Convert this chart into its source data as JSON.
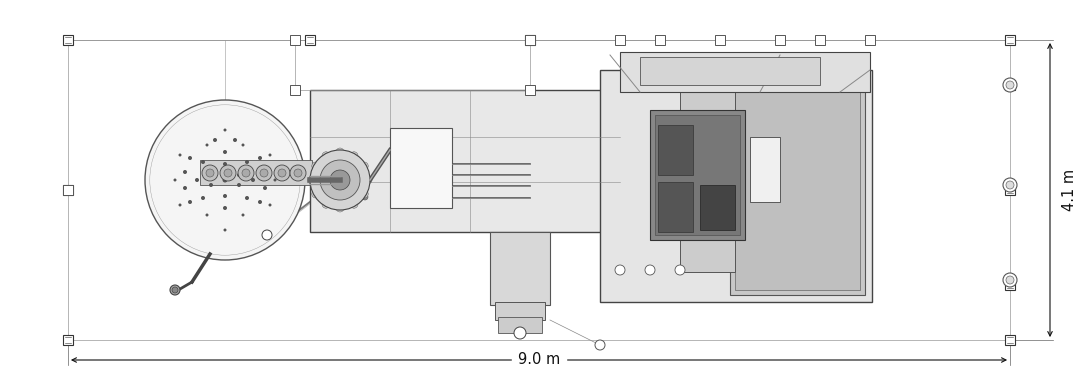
{
  "background_color": "#ffffff",
  "lc": "#333333",
  "lc_dark": "#111111",
  "lc_light": "#888888",
  "fill_light": "#f2f2f2",
  "fill_mid": "#d8d8d8",
  "fill_dark": "#aaaaaa",
  "fill_darker": "#888888",
  "fill_darkest": "#555555",
  "dim_9m_label": "9.0 m",
  "dim_41_label": "4.1 m",
  "fig_width": 10.9,
  "fig_height": 3.8,
  "annotation_fontsize": 10.5,
  "lw": 0.7,
  "tlw": 0.4
}
